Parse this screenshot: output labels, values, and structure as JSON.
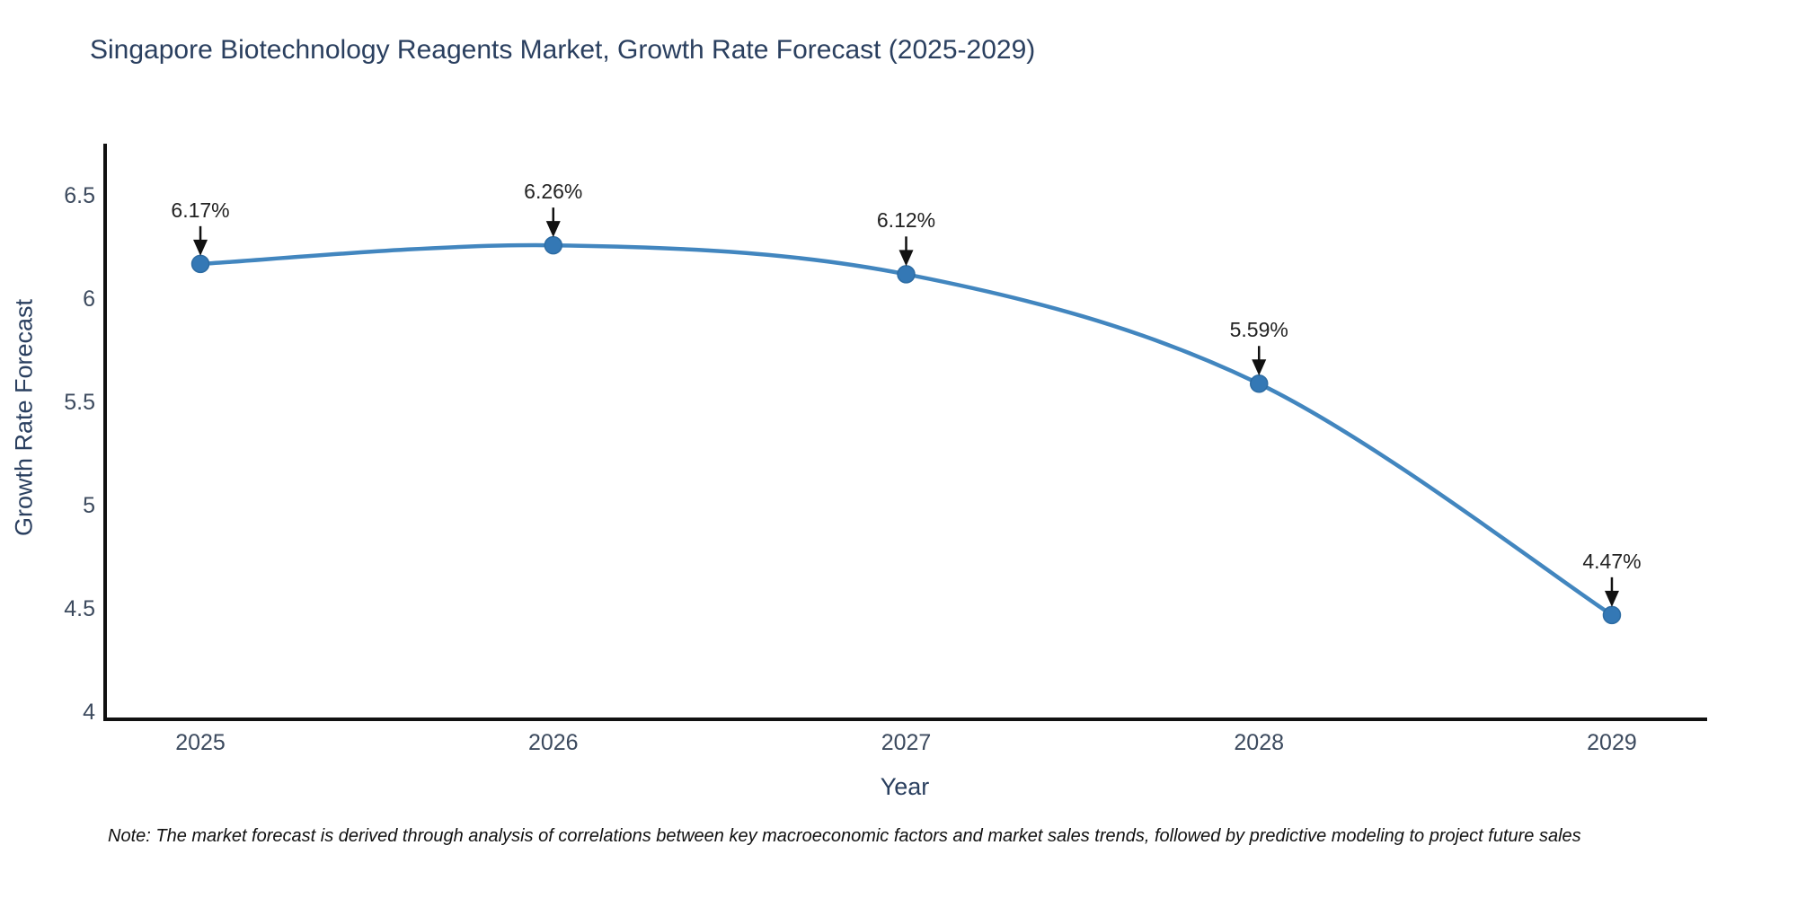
{
  "title": "Singapore Biotechnology Reagents Market, Growth Rate Forecast (2025-2029)",
  "note": "Note: The market forecast is derived through analysis of correlations between key macroeconomic factors and market sales trends, followed by predictive modeling to project future sales",
  "chart_data": {
    "type": "line",
    "title": "Singapore Biotechnology Reagents Market, Growth Rate Forecast (2025-2029)",
    "xlabel": "Year",
    "ylabel": "Growth Rate Forecast",
    "x": [
      2025,
      2026,
      2027,
      2028,
      2029
    ],
    "series": [
      {
        "name": "Growth Rate Forecast (%)",
        "values": [
          6.17,
          6.26,
          6.12,
          5.59,
          4.47
        ]
      }
    ],
    "point_labels": [
      "6.17%",
      "6.26%",
      "6.12%",
      "5.59%",
      "4.47%"
    ],
    "yticks": [
      4,
      4.5,
      5,
      5.5,
      6,
      6.5
    ],
    "xticks": [
      2025,
      2026,
      2027,
      2028,
      2029
    ],
    "ylim": [
      3.965,
      6.752
    ],
    "xlim": [
      2024.73,
      2029.27
    ],
    "grid": false,
    "legend": false,
    "annotation_style": "arrow-down-to-point",
    "colors": {
      "line": "#4286bf",
      "marker": "#3478b5",
      "marker_edge": "#2d6ca3",
      "axis_line": "#111111",
      "arrow": "#111111",
      "annotation_text": "#222222",
      "tick_text": "#3c4a5e",
      "title_text": "#2a3f5f",
      "background": "#ffffff"
    }
  }
}
